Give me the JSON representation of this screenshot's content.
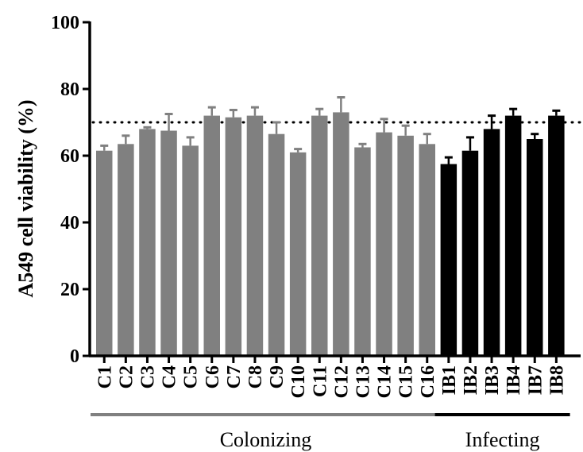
{
  "chart_data": {
    "type": "bar",
    "title": "",
    "xlabel": "",
    "ylabel": "A549 cell viability (%)",
    "ylim": [
      0,
      100
    ],
    "yticks": [
      0,
      20,
      40,
      60,
      80,
      100
    ],
    "reference_line": {
      "y": 70,
      "style": "dotted"
    },
    "grid": false,
    "categories": [
      "C1",
      "C2",
      "C3",
      "C4",
      "C5",
      "C6",
      "C7",
      "C8",
      "C9",
      "C10",
      "C11",
      "C12",
      "C13",
      "C14",
      "C15",
      "C16",
      "IB1",
      "IB2",
      "IB3",
      "IB4",
      "IB7",
      "IB8"
    ],
    "values": [
      61.5,
      63.5,
      68,
      67.5,
      63,
      72,
      71.5,
      72,
      66.5,
      61,
      72,
      73,
      62.5,
      67,
      66,
      63.5,
      57.5,
      61.5,
      68,
      72,
      65,
      72
    ],
    "errors": [
      1.5,
      2.5,
      0.5,
      5,
      2.5,
      2.5,
      2.2,
      2.5,
      3.5,
      1,
      2,
      4.5,
      1,
      4,
      3,
      3,
      2,
      4,
      4,
      2,
      1.5,
      1.5
    ],
    "groups": [
      {
        "name": "Colonizing",
        "start": 0,
        "end": 15,
        "color": "#808080"
      },
      {
        "name": "Infecting",
        "start": 16,
        "end": 21,
        "color": "#000000"
      }
    ]
  }
}
